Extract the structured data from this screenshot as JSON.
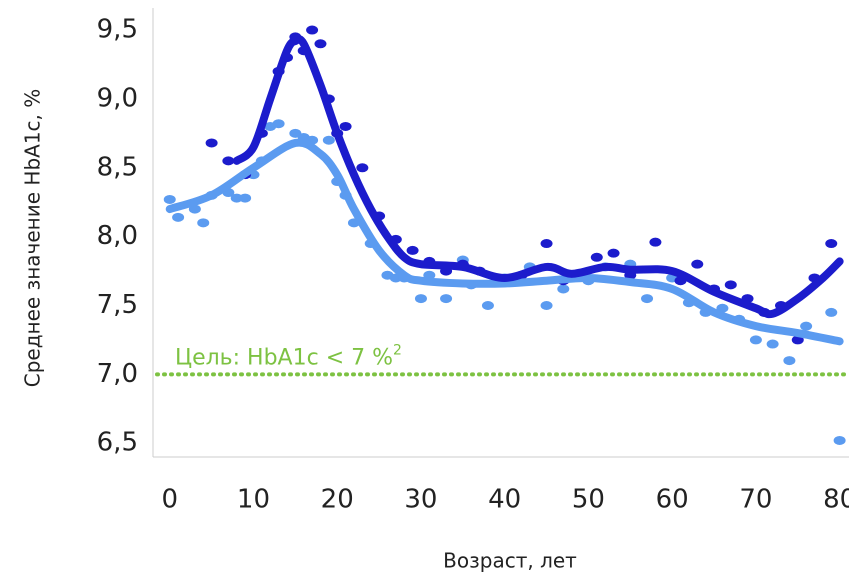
{
  "chart_data": {
    "type": "scatter",
    "y_label": "Среднее значение HbA1c, %",
    "x_label": "Возраст, лет",
    "xlim": [
      -2,
      81
    ],
    "ylim": [
      6.4,
      9.66
    ],
    "xticks": [
      0,
      10,
      20,
      30,
      40,
      50,
      60,
      70,
      80
    ],
    "yticks": [
      {
        "value": 6.5,
        "label": "6,5"
      },
      {
        "value": 7,
        "label": "7,0"
      },
      {
        "value": 7.5,
        "label": "7,5"
      },
      {
        "value": 8,
        "label": "8,0"
      },
      {
        "value": 8.5,
        "label": "8,5"
      },
      {
        "value": 9,
        "label": "9,0"
      },
      {
        "value": 9.5,
        "label": "9,5"
      }
    ],
    "reference_line": {
      "value": 7,
      "label": "Цель: HbA1c < 7 %",
      "superscript": "2",
      "color": "#7dc242"
    },
    "series": [
      {
        "kind": "scatter",
        "color": "#5b9bf0",
        "x": [
          0,
          1,
          3,
          4,
          5,
          7,
          8,
          9,
          10,
          11,
          12,
          13,
          15,
          16,
          17,
          19,
          20,
          21,
          22,
          24,
          26,
          27,
          28,
          30,
          31,
          33,
          35,
          36,
          38,
          40,
          43,
          45,
          47,
          50,
          52,
          55,
          57,
          60,
          62,
          64,
          66,
          68,
          70,
          72,
          74,
          76,
          79,
          80
        ],
        "values": [
          8.27,
          8.14,
          8.2,
          8.1,
          8.3,
          8.32,
          8.28,
          8.28,
          8.45,
          8.55,
          8.8,
          8.82,
          8.75,
          8.72,
          8.7,
          8.7,
          8.4,
          8.3,
          8.1,
          7.95,
          7.72,
          7.7,
          7.7,
          7.55,
          7.72,
          7.55,
          7.83,
          7.65,
          7.5,
          7.7,
          7.78,
          7.5,
          7.62,
          7.68,
          7.78,
          7.8,
          7.55,
          7.7,
          7.52,
          7.45,
          7.48,
          7.4,
          7.25,
          7.22,
          7.1,
          7.35,
          7.45,
          6.52
        ]
      },
      {
        "kind": "scatter",
        "color": "#1c1ccc",
        "x": [
          5,
          7,
          9,
          11,
          13,
          14,
          15,
          16,
          17,
          18,
          19,
          20,
          21,
          23,
          25,
          27,
          29,
          31,
          33,
          35,
          37,
          39,
          42,
          45,
          47,
          49,
          51,
          53,
          55,
          58,
          61,
          63,
          65,
          67,
          69,
          71,
          73,
          75,
          77,
          79
        ],
        "values": [
          8.68,
          8.55,
          8.45,
          8.75,
          9.2,
          9.3,
          9.45,
          9.35,
          9.5,
          9.4,
          9.0,
          8.75,
          8.8,
          8.5,
          8.15,
          7.98,
          7.9,
          7.82,
          7.75,
          7.8,
          7.75,
          7.7,
          7.72,
          7.95,
          7.68,
          7.72,
          7.85,
          7.88,
          7.72,
          7.96,
          7.68,
          7.8,
          7.62,
          7.65,
          7.55,
          7.45,
          7.5,
          7.25,
          7.7,
          7.95
        ]
      },
      {
        "kind": "line",
        "color": "#5b9bf0",
        "x": [
          0,
          5,
          10,
          15,
          18,
          20,
          22,
          25,
          28,
          30,
          35,
          40,
          45,
          50,
          55,
          60,
          65,
          70,
          75,
          80
        ],
        "values": [
          8.2,
          8.3,
          8.5,
          8.68,
          8.6,
          8.45,
          8.2,
          7.9,
          7.72,
          7.68,
          7.66,
          7.66,
          7.68,
          7.7,
          7.67,
          7.62,
          7.45,
          7.35,
          7.3,
          7.24
        ]
      },
      {
        "kind": "line",
        "color": "#1c1ccc",
        "x": [
          8,
          10,
          12,
          14,
          15,
          16,
          18,
          20,
          22,
          24,
          26,
          28,
          30,
          35,
          40,
          45,
          48,
          52,
          55,
          60,
          65,
          70,
          72,
          75,
          78,
          80
        ],
        "values": [
          8.55,
          8.65,
          9.0,
          9.35,
          9.42,
          9.4,
          9.1,
          8.75,
          8.45,
          8.2,
          8.0,
          7.85,
          7.8,
          7.78,
          7.7,
          7.78,
          7.73,
          7.78,
          7.76,
          7.75,
          7.6,
          7.48,
          7.44,
          7.55,
          7.7,
          7.82
        ]
      }
    ]
  }
}
